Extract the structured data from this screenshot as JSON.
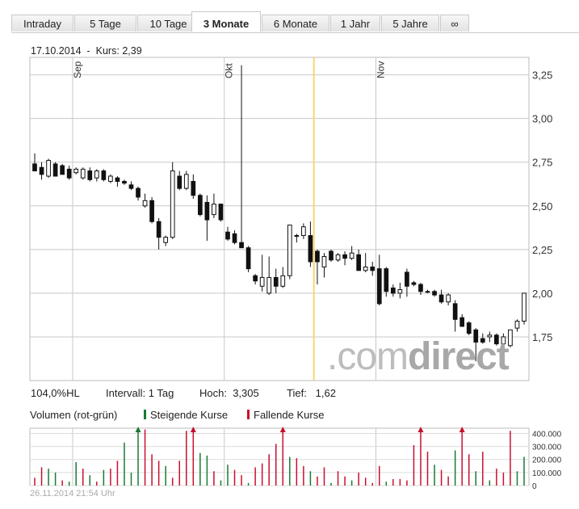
{
  "tabs": [
    "Intraday",
    "5 Tage",
    "10 Tage",
    "3 Monate",
    "6 Monate",
    "1 Jahr",
    "5 Jahre",
    "∞"
  ],
  "active_tab": "3 Monate",
  "header": {
    "date": "17.10.2014",
    "sep": "-",
    "kurs_label": "Kurs:",
    "kurs": "2,39"
  },
  "stats": {
    "pct": "104,0%HL",
    "interval_label": "Intervall:",
    "interval": "1 Tag",
    "hoch_label": "Hoch:",
    "hoch": "3,305",
    "tief_label": "Tief:",
    "tief": "1,62"
  },
  "volume": {
    "label": "Volumen (rot-grün)",
    "legend_up": "Steigende Kurse",
    "legend_down": "Fallende Kurse"
  },
  "colors": {
    "up": "#1a7a35",
    "down": "#c8102e",
    "highlight": "#f5d76e",
    "grid": "#c8c8c8"
  },
  "watermark": {
    "light": ".com",
    "bold": "direct"
  },
  "footer": "26.11.2014 21:54 Uhr",
  "chart_data": {
    "type": "candlestick",
    "price_axis": {
      "ticks": [
        1.75,
        2.0,
        2.25,
        2.5,
        2.75,
        3.0,
        3.25
      ],
      "tick_labels": [
        "1,75",
        "2,00",
        "2,25",
        "2,50",
        "2,75",
        "3,00",
        "3,25"
      ],
      "ylim": [
        1.5,
        3.35
      ]
    },
    "month_labels": [
      {
        "label": "Sep",
        "index": 6
      },
      {
        "label": "Okt",
        "index": 28
      },
      {
        "label": "Nov",
        "index": 50
      }
    ],
    "highlight_index": 41,
    "candles": [
      {
        "o": 2.74,
        "h": 2.8,
        "l": 2.7,
        "c": 2.7,
        "up": false
      },
      {
        "o": 2.72,
        "h": 2.75,
        "l": 2.65,
        "c": 2.68,
        "up": false
      },
      {
        "o": 2.67,
        "h": 2.77,
        "l": 2.66,
        "c": 2.76,
        "up": true
      },
      {
        "o": 2.74,
        "h": 2.75,
        "l": 2.67,
        "c": 2.67,
        "up": false
      },
      {
        "o": 2.73,
        "h": 2.74,
        "l": 2.68,
        "c": 2.68,
        "up": false
      },
      {
        "o": 2.71,
        "h": 2.73,
        "l": 2.65,
        "c": 2.66,
        "up": false
      },
      {
        "o": 2.69,
        "h": 2.72,
        "l": 2.68,
        "c": 2.71,
        "up": true
      },
      {
        "o": 2.66,
        "h": 2.72,
        "l": 2.65,
        "c": 2.71,
        "up": true
      },
      {
        "o": 2.7,
        "h": 2.72,
        "l": 2.64,
        "c": 2.65,
        "up": false
      },
      {
        "o": 2.66,
        "h": 2.71,
        "l": 2.64,
        "c": 2.7,
        "up": true
      },
      {
        "o": 2.7,
        "h": 2.71,
        "l": 2.64,
        "c": 2.65,
        "up": false
      },
      {
        "o": 2.64,
        "h": 2.68,
        "l": 2.63,
        "c": 2.67,
        "up": true
      },
      {
        "o": 2.66,
        "h": 2.67,
        "l": 2.61,
        "c": 2.64,
        "up": false
      },
      {
        "o": 2.64,
        "h": 2.65,
        "l": 2.62,
        "c": 2.63,
        "up": false
      },
      {
        "o": 2.62,
        "h": 2.64,
        "l": 2.59,
        "c": 2.6,
        "up": false
      },
      {
        "o": 2.6,
        "h": 2.61,
        "l": 2.53,
        "c": 2.55,
        "up": false
      },
      {
        "o": 2.5,
        "h": 2.57,
        "l": 2.49,
        "c": 2.53,
        "up": true
      },
      {
        "o": 2.53,
        "h": 2.55,
        "l": 2.4,
        "c": 2.41,
        "up": false
      },
      {
        "o": 2.41,
        "h": 2.43,
        "l": 2.25,
        "c": 2.32,
        "up": false
      },
      {
        "o": 2.29,
        "h": 2.33,
        "l": 2.27,
        "c": 2.32,
        "up": true
      },
      {
        "o": 2.32,
        "h": 2.75,
        "l": 2.31,
        "c": 2.7,
        "up": true
      },
      {
        "o": 2.67,
        "h": 2.7,
        "l": 2.59,
        "c": 2.6,
        "up": false
      },
      {
        "o": 2.6,
        "h": 2.7,
        "l": 2.59,
        "c": 2.68,
        "up": true
      },
      {
        "o": 2.64,
        "h": 2.68,
        "l": 2.54,
        "c": 2.56,
        "up": false
      },
      {
        "o": 2.56,
        "h": 2.57,
        "l": 2.44,
        "c": 2.45,
        "up": false
      },
      {
        "o": 2.52,
        "h": 2.56,
        "l": 2.3,
        "c": 2.42,
        "up": false
      },
      {
        "o": 2.45,
        "h": 2.57,
        "l": 2.43,
        "c": 2.51,
        "up": true
      },
      {
        "o": 2.51,
        "h": 2.51,
        "l": 2.41,
        "c": 2.42,
        "up": false
      },
      {
        "o": 2.35,
        "h": 2.38,
        "l": 2.3,
        "c": 2.31,
        "up": false
      },
      {
        "o": 2.34,
        "h": 2.36,
        "l": 2.28,
        "c": 2.29,
        "up": false
      },
      {
        "o": 2.29,
        "h": 3.305,
        "l": 2.27,
        "c": 2.26,
        "up": false
      },
      {
        "o": 2.26,
        "h": 2.27,
        "l": 2.12,
        "c": 2.14,
        "up": false
      },
      {
        "o": 2.1,
        "h": 2.11,
        "l": 2.05,
        "c": 2.07,
        "up": false
      },
      {
        "o": 2.04,
        "h": 2.22,
        "l": 2.01,
        "c": 2.09,
        "up": true
      },
      {
        "o": 2.0,
        "h": 2.21,
        "l": 1.99,
        "c": 2.09,
        "up": true
      },
      {
        "o": 2.09,
        "h": 2.14,
        "l": 2.0,
        "c": 2.04,
        "up": false
      },
      {
        "o": 2.04,
        "h": 2.15,
        "l": 2.03,
        "c": 2.1,
        "up": true
      },
      {
        "o": 2.1,
        "h": 2.39,
        "l": 2.08,
        "c": 2.39,
        "up": true
      },
      {
        "o": 2.33,
        "h": 2.34,
        "l": 2.29,
        "c": 2.33,
        "up": true
      },
      {
        "o": 2.33,
        "h": 2.4,
        "l": 2.31,
        "c": 2.38,
        "up": true
      },
      {
        "o": 2.33,
        "h": 2.41,
        "l": 2.15,
        "c": 2.18,
        "up": false
      },
      {
        "o": 2.24,
        "h": 2.25,
        "l": 2.05,
        "c": 2.18,
        "up": false
      },
      {
        "o": 2.15,
        "h": 2.23,
        "l": 2.09,
        "c": 2.21,
        "up": true
      },
      {
        "o": 2.24,
        "h": 2.25,
        "l": 2.18,
        "c": 2.19,
        "up": false
      },
      {
        "o": 2.19,
        "h": 2.23,
        "l": 2.18,
        "c": 2.22,
        "up": true
      },
      {
        "o": 2.22,
        "h": 2.24,
        "l": 2.16,
        "c": 2.2,
        "up": false
      },
      {
        "o": 2.2,
        "h": 2.27,
        "l": 2.19,
        "c": 2.23,
        "up": true
      },
      {
        "o": 2.22,
        "h": 2.25,
        "l": 2.13,
        "c": 2.13,
        "up": false
      },
      {
        "o": 2.13,
        "h": 2.23,
        "l": 2.12,
        "c": 2.15,
        "up": true
      },
      {
        "o": 2.15,
        "h": 2.18,
        "l": 2.1,
        "c": 2.13,
        "up": false
      },
      {
        "o": 2.14,
        "h": 2.22,
        "l": 1.93,
        "c": 1.94,
        "up": false
      },
      {
        "o": 2.14,
        "h": 2.15,
        "l": 1.98,
        "c": 2.01,
        "up": false
      },
      {
        "o": 2.03,
        "h": 2.05,
        "l": 1.98,
        "c": 2.0,
        "up": false
      },
      {
        "o": 2.0,
        "h": 2.06,
        "l": 1.97,
        "c": 2.02,
        "up": true
      },
      {
        "o": 2.12,
        "h": 2.14,
        "l": 1.98,
        "c": 2.04,
        "up": false
      },
      {
        "o": 2.06,
        "h": 2.07,
        "l": 2.04,
        "c": 2.05,
        "up": false
      },
      {
        "o": 2.05,
        "h": 2.06,
        "l": 1.99,
        "c": 2.01,
        "up": false
      },
      {
        "o": 2.01,
        "h": 2.02,
        "l": 2.0,
        "c": 2.01,
        "up": false
      },
      {
        "o": 2.01,
        "h": 2.02,
        "l": 1.98,
        "c": 1.99,
        "up": false
      },
      {
        "o": 1.99,
        "h": 2.02,
        "l": 1.94,
        "c": 1.95,
        "up": false
      },
      {
        "o": 1.95,
        "h": 2.0,
        "l": 1.93,
        "c": 1.99,
        "up": true
      },
      {
        "o": 1.94,
        "h": 1.96,
        "l": 1.78,
        "c": 1.85,
        "up": false
      },
      {
        "o": 1.86,
        "h": 1.88,
        "l": 1.81,
        "c": 1.81,
        "up": false
      },
      {
        "o": 1.83,
        "h": 1.84,
        "l": 1.76,
        "c": 1.77,
        "up": false
      },
      {
        "o": 1.79,
        "h": 1.8,
        "l": 1.61,
        "c": 1.72,
        "up": false
      },
      {
        "o": 1.74,
        "h": 1.77,
        "l": 1.71,
        "c": 1.72,
        "up": false
      },
      {
        "o": 1.75,
        "h": 1.78,
        "l": 1.72,
        "c": 1.76,
        "up": true
      },
      {
        "o": 1.76,
        "h": 1.77,
        "l": 1.7,
        "c": 1.71,
        "up": false
      },
      {
        "o": 1.71,
        "h": 1.77,
        "l": 1.69,
        "c": 1.75,
        "up": true
      },
      {
        "o": 1.7,
        "h": 1.79,
        "l": 1.69,
        "c": 1.79,
        "up": true
      },
      {
        "o": 1.8,
        "h": 1.85,
        "l": 1.78,
        "c": 1.84,
        "up": true
      },
      {
        "o": 1.84,
        "h": 2.0,
        "l": 1.82,
        "c": 2.0,
        "up": true
      }
    ],
    "volume_axis": {
      "ticks": [
        0,
        100000,
        200000,
        300000,
        400000
      ],
      "tick_labels": [
        "0",
        "100.000",
        "200.000",
        "300.000",
        "400.000"
      ],
      "ylim": [
        0,
        440000
      ]
    },
    "volume": [
      {
        "v": 60000,
        "up": false
      },
      {
        "v": 140000,
        "up": false
      },
      {
        "v": 130000,
        "up": true
      },
      {
        "v": 100000,
        "up": true
      },
      {
        "v": 40000,
        "up": false
      },
      {
        "v": 30000,
        "up": true
      },
      {
        "v": 180000,
        "up": true
      },
      {
        "v": 130000,
        "up": false
      },
      {
        "v": 80000,
        "up": true
      },
      {
        "v": 30000,
        "up": false
      },
      {
        "v": 120000,
        "up": true
      },
      {
        "v": 130000,
        "up": false
      },
      {
        "v": 190000,
        "up": false
      },
      {
        "v": 330000,
        "up": true
      },
      {
        "v": 100000,
        "up": true
      },
      {
        "v": 500000,
        "up": true
      },
      {
        "v": 430000,
        "up": false
      },
      {
        "v": 240000,
        "up": false
      },
      {
        "v": 190000,
        "up": false
      },
      {
        "v": 150000,
        "up": true
      },
      {
        "v": 60000,
        "up": false
      },
      {
        "v": 190000,
        "up": false
      },
      {
        "v": 420000,
        "up": false
      },
      {
        "v": 500000,
        "up": false
      },
      {
        "v": 250000,
        "up": true
      },
      {
        "v": 230000,
        "up": true
      },
      {
        "v": 110000,
        "up": false
      },
      {
        "v": 40000,
        "up": true
      },
      {
        "v": 160000,
        "up": true
      },
      {
        "v": 120000,
        "up": false
      },
      {
        "v": 80000,
        "up": false
      },
      {
        "v": 20000,
        "up": true
      },
      {
        "v": 140000,
        "up": false
      },
      {
        "v": 170000,
        "up": false
      },
      {
        "v": 240000,
        "up": false
      },
      {
        "v": 320000,
        "up": false
      },
      {
        "v": 500000,
        "up": false
      },
      {
        "v": 220000,
        "up": true
      },
      {
        "v": 210000,
        "up": false
      },
      {
        "v": 150000,
        "up": false
      },
      {
        "v": 110000,
        "up": true
      },
      {
        "v": 70000,
        "up": false
      },
      {
        "v": 140000,
        "up": false
      },
      {
        "v": 20000,
        "up": true
      },
      {
        "v": 110000,
        "up": false
      },
      {
        "v": 70000,
        "up": false
      },
      {
        "v": 40000,
        "up": true
      },
      {
        "v": 100000,
        "up": false
      },
      {
        "v": 60000,
        "up": false
      },
      {
        "v": 20000,
        "up": false
      },
      {
        "v": 150000,
        "up": false
      },
      {
        "v": 30000,
        "up": true
      },
      {
        "v": 50000,
        "up": false
      },
      {
        "v": 50000,
        "up": false
      },
      {
        "v": 40000,
        "up": false
      },
      {
        "v": 310000,
        "up": false
      },
      {
        "v": 500000,
        "up": false
      },
      {
        "v": 260000,
        "up": false
      },
      {
        "v": 160000,
        "up": true
      },
      {
        "v": 120000,
        "up": false
      },
      {
        "v": 70000,
        "up": false
      },
      {
        "v": 270000,
        "up": true
      },
      {
        "v": 500000,
        "up": false
      },
      {
        "v": 240000,
        "up": false
      },
      {
        "v": 110000,
        "up": true
      },
      {
        "v": 260000,
        "up": false
      },
      {
        "v": 40000,
        "up": true
      },
      {
        "v": 130000,
        "up": false
      },
      {
        "v": 100000,
        "up": false
      },
      {
        "v": 420000,
        "up": false
      },
      {
        "v": 110000,
        "up": true
      },
      {
        "v": 220000,
        "up": true
      }
    ]
  }
}
